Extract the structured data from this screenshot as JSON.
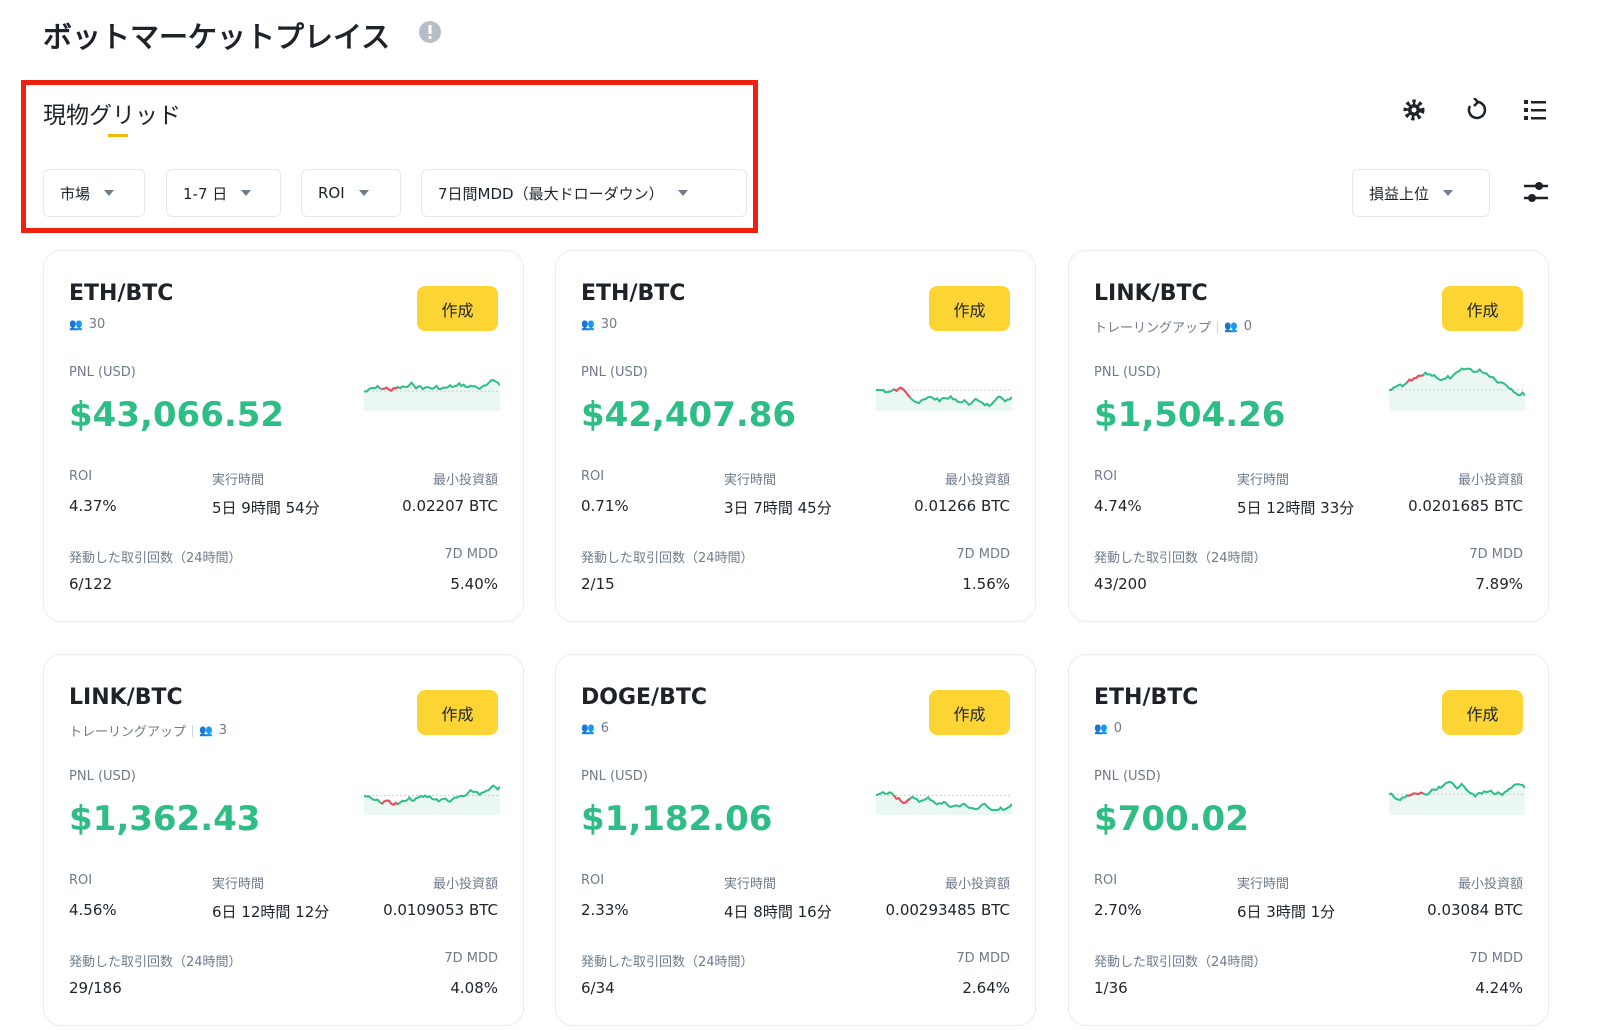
{
  "header": {
    "title": "ボットマーケットプレイス"
  },
  "tab": "現物グリッド",
  "filters": [
    "市場",
    "1-7 日",
    "ROI",
    "7日間MDD（最大ドローダウン）"
  ],
  "sort": "損益上位",
  "labels": {
    "button": "作成",
    "pnl": "PNL (USD)",
    "roi": "ROI",
    "runtime": "実行時間",
    "min": "最小投資額",
    "trades": "発動した取引回数（24時間）",
    "mdd": "7D MDD"
  },
  "cards": [
    {
      "pair": "ETH/BTC",
      "followers": "30",
      "pnl": "$43,066.52",
      "roi": "4.37%",
      "runtime": "5日 9時間 54分",
      "min": "0.02207 BTC",
      "trades": "6/122",
      "mdd": "5.40%"
    },
    {
      "pair": "ETH/BTC",
      "followers": "30",
      "pnl": "$42,407.86",
      "roi": "0.71%",
      "runtime": "3日 7時間 45分",
      "min": "0.01266 BTC",
      "trades": "2/15",
      "mdd": "1.56%"
    },
    {
      "pair": "LINK/BTC",
      "tag": "トレーリングアップ",
      "followers": "0",
      "pnl": "$1,504.26",
      "roi": "4.74%",
      "runtime": "5日 12時間 33分",
      "min": "0.0201685 BTC",
      "trades": "43/200",
      "mdd": "7.89%"
    },
    {
      "pair": "LINK/BTC",
      "tag": "トレーリングアップ",
      "followers": "3",
      "pnl": "$1,362.43",
      "roi": "4.56%",
      "runtime": "6日 12時間 12分",
      "min": "0.0109053 BTC",
      "trades": "29/186",
      "mdd": "4.08%"
    },
    {
      "pair": "DOGE/BTC",
      "followers": "6",
      "pnl": "$1,182.06",
      "roi": "2.33%",
      "runtime": "4日 8時間 16分",
      "min": "0.00293485 BTC",
      "trades": "6/34",
      "mdd": "2.64%"
    },
    {
      "pair": "ETH/BTC",
      "followers": "0",
      "pnl": "$700.02",
      "roi": "2.70%",
      "runtime": "6日 3時間 1分",
      "min": "0.03084 BTC",
      "trades": "1/36",
      "mdd": "4.24%"
    }
  ]
}
